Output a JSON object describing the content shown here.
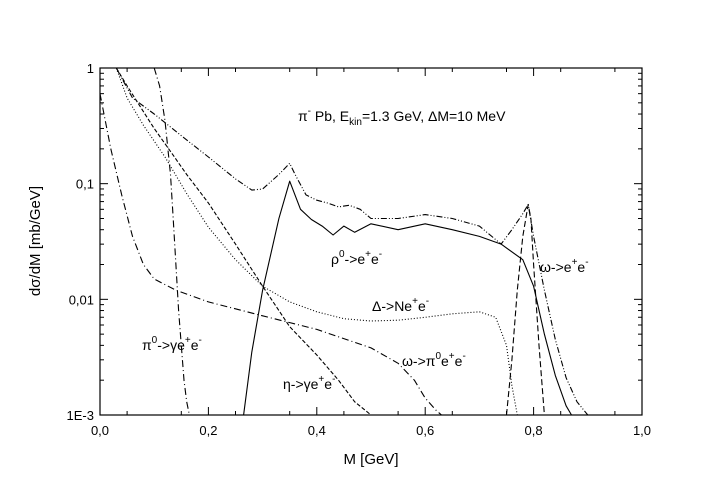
{
  "chart_data": {
    "type": "line",
    "title": "",
    "xlabel": "M [GeV]",
    "ylabel": "dσ/dM [mb/GeV]",
    "xlim": [
      0,
      1
    ],
    "ylim": [
      0.001,
      1
    ],
    "yscale": "log",
    "grid": false,
    "x_tick_labels": [
      "0,0",
      "0,2",
      "0,4",
      "0,6",
      "0,8",
      "1,0"
    ],
    "x_ticks": [
      0,
      0.2,
      0.4,
      0.6,
      0.8,
      1.0
    ],
    "y_tick_labels": [
      "1E-3",
      "0,01",
      "0,1",
      "1"
    ],
    "y_ticks": [
      0.001,
      0.01,
      0.1,
      1
    ],
    "annotations": {
      "main": {
        "base": "π",
        "sup1": "-",
        "rest": " Pb, E",
        "sub": "kin",
        "tail": "=1.3 GeV, ΔM=10 MeV"
      },
      "rho": {
        "base": "ρ",
        "sup": "0",
        "mid": "->e",
        "sup2": "+",
        "mid2": "e",
        "sup3": "-"
      },
      "omega": {
        "base": "ω->e",
        "sup": "+",
        "mid": "e",
        "sup2": "-"
      },
      "delta": {
        "base": "Δ->Ne",
        "sup": "+",
        "mid": "e",
        "sup2": "-"
      },
      "pi0": {
        "base": "π",
        "sup": "0",
        "mid": "->γe",
        "sup2": "+",
        "mid2": "e",
        "sup3": "-"
      },
      "eta": {
        "base": "η->γe",
        "sup": "+",
        "mid": "e",
        "sup2": "-"
      },
      "omega_dalitz": {
        "base": "ω->π",
        "sup": "0",
        "mid": "e",
        "sup2": "+",
        "mid2": "e",
        "sup3": "-"
      }
    },
    "series": [
      {
        "id": "total",
        "style": "dash-dot-dot",
        "x": [
          0.03,
          0.06,
          0.1,
          0.15,
          0.2,
          0.25,
          0.28,
          0.3,
          0.33,
          0.35,
          0.36,
          0.38,
          0.4,
          0.42,
          0.44,
          0.46,
          0.48,
          0.5,
          0.55,
          0.6,
          0.65,
          0.7,
          0.74,
          0.76,
          0.78,
          0.79,
          0.8,
          0.82,
          0.84,
          0.86,
          0.88,
          0.9
        ],
        "y": [
          1.0,
          0.55,
          0.4,
          0.26,
          0.17,
          0.11,
          0.088,
          0.09,
          0.12,
          0.15,
          0.12,
          0.08,
          0.072,
          0.068,
          0.063,
          0.065,
          0.06,
          0.05,
          0.05,
          0.054,
          0.05,
          0.043,
          0.03,
          0.04,
          0.055,
          0.066,
          0.035,
          0.012,
          0.0045,
          0.0021,
          0.0013,
          0.001
        ]
      },
      {
        "id": "rho",
        "style": "solid",
        "x": [
          0.265,
          0.28,
          0.3,
          0.33,
          0.35,
          0.37,
          0.39,
          0.41,
          0.43,
          0.45,
          0.47,
          0.5,
          0.55,
          0.6,
          0.65,
          0.7,
          0.74,
          0.78,
          0.8,
          0.82,
          0.84,
          0.86,
          0.87
        ],
        "y": [
          0.001,
          0.0035,
          0.012,
          0.05,
          0.105,
          0.06,
          0.049,
          0.043,
          0.036,
          0.043,
          0.038,
          0.045,
          0.04,
          0.045,
          0.04,
          0.035,
          0.03,
          0.022,
          0.013,
          0.005,
          0.0022,
          0.0012,
          0.001
        ]
      },
      {
        "id": "omega",
        "style": "dashed",
        "x": [
          0.75,
          0.76,
          0.77,
          0.78,
          0.79,
          0.795,
          0.8,
          0.81,
          0.82
        ],
        "y": [
          0.001,
          0.003,
          0.012,
          0.035,
          0.066,
          0.05,
          0.02,
          0.004,
          0.001
        ]
      },
      {
        "id": "delta",
        "style": "dotted",
        "x": [
          0.03,
          0.05,
          0.08,
          0.12,
          0.16,
          0.2,
          0.25,
          0.3,
          0.35,
          0.4,
          0.45,
          0.5,
          0.55,
          0.6,
          0.65,
          0.7,
          0.73,
          0.75,
          0.76,
          0.77
        ],
        "y": [
          1.0,
          0.55,
          0.32,
          0.17,
          0.082,
          0.042,
          0.022,
          0.013,
          0.0095,
          0.0078,
          0.0068,
          0.0065,
          0.0066,
          0.007,
          0.0075,
          0.0078,
          0.007,
          0.004,
          0.0018,
          0.001
        ]
      },
      {
        "id": "eta",
        "style": "dashed-short",
        "x": [
          0.03,
          0.05,
          0.08,
          0.1,
          0.13,
          0.16,
          0.2,
          0.25,
          0.3,
          0.35,
          0.4,
          0.44,
          0.47,
          0.5
        ],
        "y": [
          1.0,
          0.7,
          0.42,
          0.3,
          0.19,
          0.12,
          0.068,
          0.03,
          0.013,
          0.0058,
          0.0033,
          0.002,
          0.0013,
          0.001
        ]
      },
      {
        "id": "pi0",
        "style": "dash-dot",
        "x": [
          0.1,
          0.11,
          0.12,
          0.13,
          0.135,
          0.14,
          0.145,
          0.15,
          0.155,
          0.16,
          0.165
        ],
        "y": [
          1.0,
          0.7,
          0.35,
          0.12,
          0.05,
          0.02,
          0.008,
          0.004,
          0.002,
          0.0013,
          0.001
        ]
      },
      {
        "id": "omega_dalitz",
        "style": "dash-dot",
        "x": [
          0.0,
          0.02,
          0.04,
          0.06,
          0.08,
          0.1,
          0.14,
          0.2,
          0.3,
          0.4,
          0.5,
          0.55,
          0.58,
          0.6,
          0.62,
          0.63
        ],
        "y": [
          0.6,
          0.2,
          0.08,
          0.035,
          0.02,
          0.015,
          0.012,
          0.0095,
          0.0072,
          0.0055,
          0.0038,
          0.0028,
          0.002,
          0.0014,
          0.0011,
          0.001
        ]
      }
    ]
  }
}
